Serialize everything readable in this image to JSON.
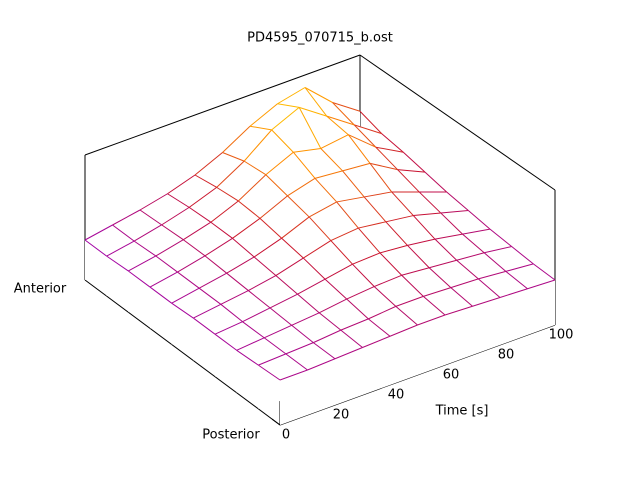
{
  "chart_data": {
    "type": "surface",
    "title": "PD4595_070715_b.ost",
    "x_label": "Time [s]",
    "y_labels": [
      "Anterior",
      "Posterior"
    ],
    "x": [
      0,
      10,
      20,
      30,
      40,
      50,
      60,
      70,
      80,
      90,
      100
    ],
    "xlim": [
      0,
      100
    ],
    "xticks": [
      0,
      20,
      40,
      60,
      80,
      100
    ],
    "zlim": [
      0,
      1
    ],
    "z": [
      [
        0.32,
        0.36,
        0.4,
        0.45,
        0.52,
        0.62,
        0.75,
        0.85,
        0.9,
        0.7,
        0.55
      ],
      [
        0.32,
        0.36,
        0.41,
        0.47,
        0.55,
        0.68,
        0.85,
        0.95,
        0.8,
        0.65,
        0.5
      ],
      [
        0.33,
        0.37,
        0.42,
        0.48,
        0.57,
        0.7,
        0.8,
        0.75,
        0.78,
        0.6,
        0.48
      ],
      [
        0.33,
        0.37,
        0.42,
        0.48,
        0.56,
        0.66,
        0.72,
        0.7,
        0.68,
        0.55,
        0.45
      ],
      [
        0.33,
        0.37,
        0.41,
        0.46,
        0.53,
        0.62,
        0.66,
        0.62,
        0.58,
        0.5,
        0.42
      ],
      [
        0.34,
        0.37,
        0.4,
        0.44,
        0.5,
        0.56,
        0.58,
        0.55,
        0.52,
        0.46,
        0.4
      ],
      [
        0.34,
        0.36,
        0.39,
        0.42,
        0.46,
        0.5,
        0.51,
        0.49,
        0.46,
        0.42,
        0.38
      ],
      [
        0.34,
        0.36,
        0.38,
        0.4,
        0.43,
        0.45,
        0.46,
        0.44,
        0.42,
        0.4,
        0.37
      ],
      [
        0.35,
        0.36,
        0.37,
        0.39,
        0.4,
        0.42,
        0.42,
        0.41,
        0.4,
        0.38,
        0.36
      ],
      [
        0.36,
        0.36,
        0.37,
        0.38,
        0.39,
        0.4,
        0.4,
        0.39,
        0.38,
        0.37,
        0.36
      ]
    ],
    "palette": [
      "#000000",
      "#9400d3",
      "#c8102e",
      "#ff8c00",
      "#ffd700"
    ]
  }
}
